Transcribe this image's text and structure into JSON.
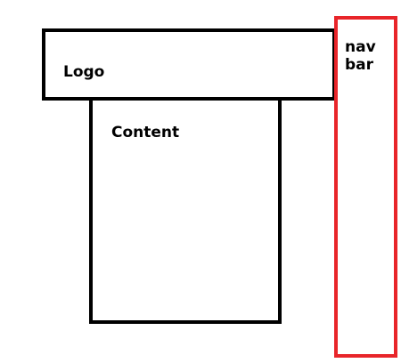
{
  "header": {
    "label": "Logo"
  },
  "content": {
    "label": "Content"
  },
  "navbar": {
    "label_line1": "nav",
    "label_line2": "bar"
  },
  "colors": {
    "outline": "#000000",
    "navbar_outline": "#e8252a"
  }
}
